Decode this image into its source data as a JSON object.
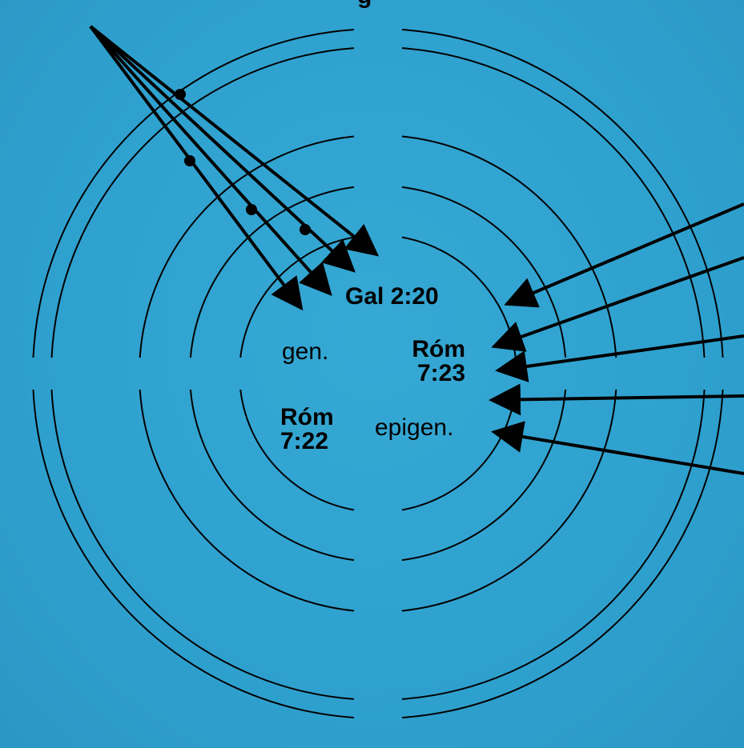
{
  "labels": {
    "top_fragment": "g",
    "gal": "Gal 2:20",
    "gen": "gen.",
    "rom723_line1": "Róm",
    "rom723_line2": "7:23",
    "rom722_line1": "Róm",
    "rom722_line2": "7:22",
    "epigen": "epigen."
  },
  "colors": {
    "background": "#2fa3d1",
    "ink": "#000000"
  }
}
